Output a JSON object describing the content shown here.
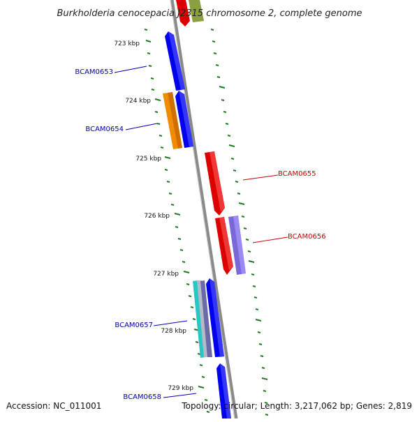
{
  "title": "Burkholderia cenocepacia J2315 chromosome 2, complete genome",
  "footer": {
    "accession": "Accession: NC_011001",
    "summary": "Topology: circular; Length: 3,217,062 bp; Genes: 2,819"
  },
  "ruler": {
    "labels": [
      "723 kbp",
      "724 kbp",
      "725 kbp",
      "726 kbp",
      "727 kbp",
      "728 kbp",
      "729 kbp"
    ]
  },
  "genes": [
    {
      "name": "BCAM0653",
      "strand": "minus",
      "color": "#0000ee"
    },
    {
      "name": "BCAM0654",
      "strand": "minus",
      "color": "#0000ee"
    },
    {
      "name": "BCAM0655",
      "strand": "plus",
      "color": "#dd0000"
    },
    {
      "name": "BCAM0656",
      "strand": "plus",
      "color": "#dd0000"
    },
    {
      "name": "BCAM0657",
      "strand": "minus",
      "color": "#0000ee"
    },
    {
      "name": "BCAM0658",
      "strand": "minus",
      "color": "#0000ee"
    }
  ],
  "colors": {
    "backbone": "#8a8a8a",
    "tick": "#1f7a1f",
    "minus_label": "#0000aa",
    "plus_label": "#cc0000",
    "orange_feature": "#f08c00",
    "purple_feature": "#7b68d8",
    "cyan_feature": "#2ac6c6",
    "olive_feature": "#8aa040"
  }
}
